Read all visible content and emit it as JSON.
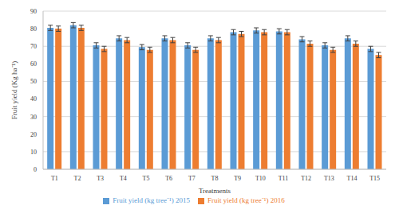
{
  "chart_data": {
    "type": "bar",
    "y_label": "Fruit yield (Kg ha⁻¹)",
    "x_label": "Treatments",
    "categories": [
      "T1",
      "T2",
      "T3",
      "T4",
      "T5",
      "T6",
      "T7",
      "T8",
      "T9",
      "T10",
      "T11",
      "T12",
      "T13",
      "T14",
      "T15"
    ],
    "series": [
      {
        "name": "Fruit yield (kg tree⁻¹) 2015",
        "color": "#5b9bd5",
        "values": [
          80.5,
          82,
          70.5,
          74.5,
          69.5,
          74.5,
          70.5,
          74.5,
          78,
          79,
          78.5,
          74,
          70.5,
          74.5,
          68.5
        ],
        "errors": [
          1.5,
          1.5,
          1.5,
          1.5,
          1.5,
          1.5,
          1.5,
          1.5,
          1.5,
          1.5,
          1.5,
          1.5,
          1.5,
          1.5,
          1.5
        ]
      },
      {
        "name": "Fruit yield (kg tree⁻¹) 2016",
        "color": "#ed7d31",
        "values": [
          80,
          80.5,
          68.5,
          73.5,
          68,
          73.5,
          68,
          73.5,
          77,
          78,
          78,
          71.5,
          68,
          71.5,
          65
        ],
        "errors": [
          1.5,
          1.5,
          1.5,
          1.5,
          1.5,
          1.5,
          1.5,
          1.5,
          1.5,
          1.5,
          1.5,
          1.5,
          1.5,
          1.5,
          1.5
        ]
      }
    ],
    "ylim": [
      0,
      90
    ],
    "yticks": [
      0,
      10,
      20,
      30,
      40,
      50,
      60,
      70,
      80,
      90
    ],
    "grid": true,
    "legend": "bottom"
  }
}
